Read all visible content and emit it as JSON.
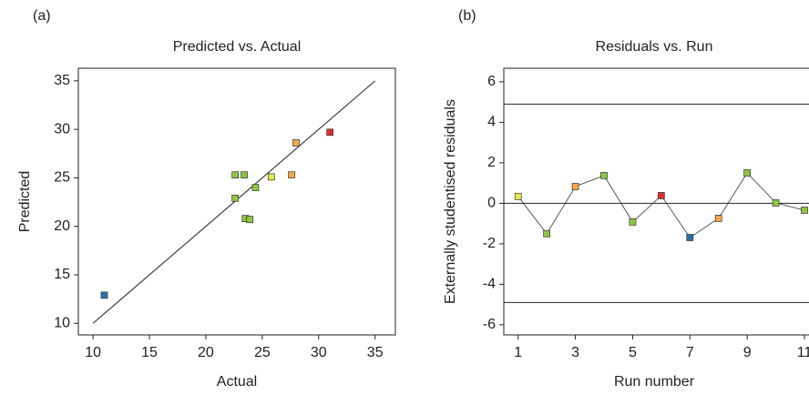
{
  "chart_data": [
    {
      "type": "scatter",
      "panel_label": "(a)",
      "title": "Predicted vs. Actual",
      "x_label": "Actual",
      "y_label": "Predicted",
      "x": [
        11.0,
        22.6,
        23.4,
        22.6,
        23.5,
        23.9,
        24.4,
        25.8,
        27.6,
        28.0,
        31.0
      ],
      "values": [
        12.9,
        25.3,
        25.3,
        22.9,
        20.8,
        20.7,
        24.0,
        25.1,
        25.3,
        28.6,
        29.7
      ],
      "colors": [
        "#2e6fa7",
        "#8dc63f",
        "#8dc63f",
        "#8dc63f",
        "#8dc63f",
        "#8dc63f",
        "#8dc63f",
        "#e8e84a",
        "#f4a84a",
        "#f4a84a",
        "#d9302c"
      ],
      "fit_line": {
        "x": [
          10,
          35
        ],
        "y": [
          10,
          35
        ]
      },
      "xlim": [
        8.7,
        36.8
      ],
      "xticks": [
        10,
        15,
        20,
        25,
        30,
        35
      ],
      "ylim": [
        8.8,
        36.3
      ],
      "yticks": [
        10,
        15,
        20,
        25,
        30,
        35
      ]
    },
    {
      "type": "scatter",
      "panel_label": "(b)",
      "title": "Residuals vs. Run",
      "x_label": "Run number",
      "y_label": "Externally studentised residuals",
      "x": [
        1,
        2,
        3,
        4,
        5,
        6,
        7,
        8,
        9,
        10,
        11
      ],
      "values": [
        0.34,
        -1.5,
        0.83,
        1.37,
        -0.92,
        0.38,
        -1.69,
        -0.74,
        1.5,
        0.02,
        -0.34
      ],
      "colors": [
        "#e8e84a",
        "#8dc63f",
        "#f4a84a",
        "#8dc63f",
        "#8dc63f",
        "#d9302c",
        "#2e6fa7",
        "#f4a84a",
        "#8dc63f",
        "#8dc63f",
        "#8dc63f"
      ],
      "connect": true,
      "hlines": [
        4.9,
        0,
        -4.9
      ],
      "xlim": [
        0.5,
        11.7
      ],
      "xticks": [
        1,
        3,
        5,
        7,
        9,
        11
      ],
      "ylim": [
        -6.5,
        6.67
      ],
      "yticks": [
        -6,
        -4,
        -2,
        0,
        2,
        4,
        6
      ]
    }
  ]
}
